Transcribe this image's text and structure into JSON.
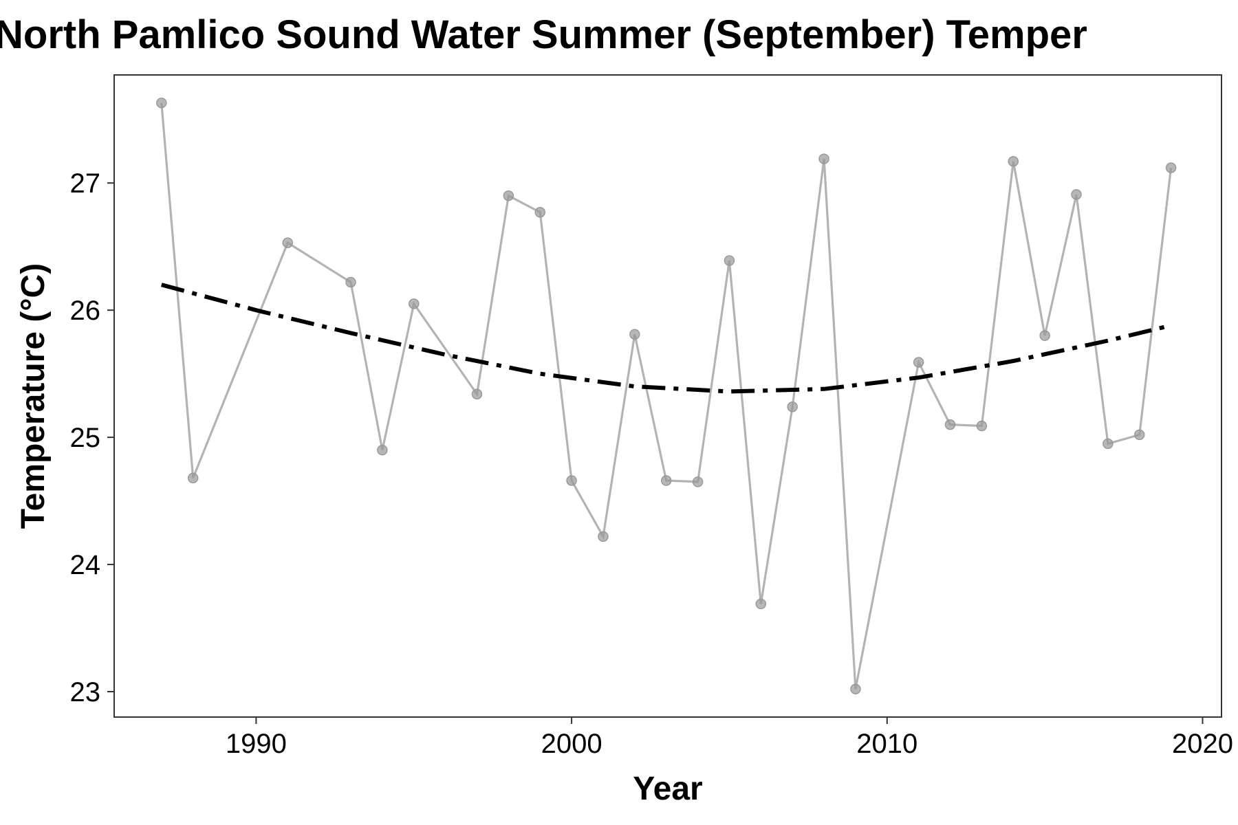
{
  "chart_data": {
    "type": "line",
    "title": "North Pamlico Sound Water Summer (September) Temper",
    "xlabel": "Year",
    "ylabel": "Temperature (°C)",
    "xlim": [
      1985.5,
      2020.6
    ],
    "ylim": [
      22.8,
      27.85
    ],
    "xticks": [
      1990,
      2000,
      2010,
      2020
    ],
    "yticks": [
      23,
      24,
      25,
      26,
      27
    ],
    "grid": false,
    "legend": "none",
    "series": [
      {
        "style": "observed",
        "color": "#b3b3b3",
        "x": [
          1987,
          1988,
          1991,
          1993,
          1994,
          1995,
          1997,
          1998,
          1999,
          2000,
          2001,
          2002,
          2003,
          2004,
          2005,
          2006,
          2007,
          2008,
          2009,
          2011,
          2012,
          2013,
          2014,
          2015,
          2016,
          2017,
          2018,
          2019
        ],
        "y": [
          27.63,
          24.68,
          26.53,
          26.22,
          24.9,
          26.05,
          25.34,
          26.9,
          26.77,
          24.66,
          24.22,
          25.81,
          24.66,
          24.65,
          26.39,
          23.69,
          25.24,
          27.19,
          23.02,
          25.59,
          25.1,
          25.09,
          27.17,
          25.8,
          26.91,
          24.95,
          25.02,
          27.12
        ]
      },
      {
        "style": "trend",
        "color": "#000000",
        "x": [
          1987,
          1990,
          1993,
          1996,
          1999,
          2002,
          2005,
          2008,
          2011,
          2014,
          2017,
          2019
        ],
        "y": [
          26.2,
          26.0,
          25.82,
          25.65,
          25.5,
          25.4,
          25.36,
          25.38,
          25.47,
          25.6,
          25.76,
          25.88
        ]
      }
    ]
  }
}
